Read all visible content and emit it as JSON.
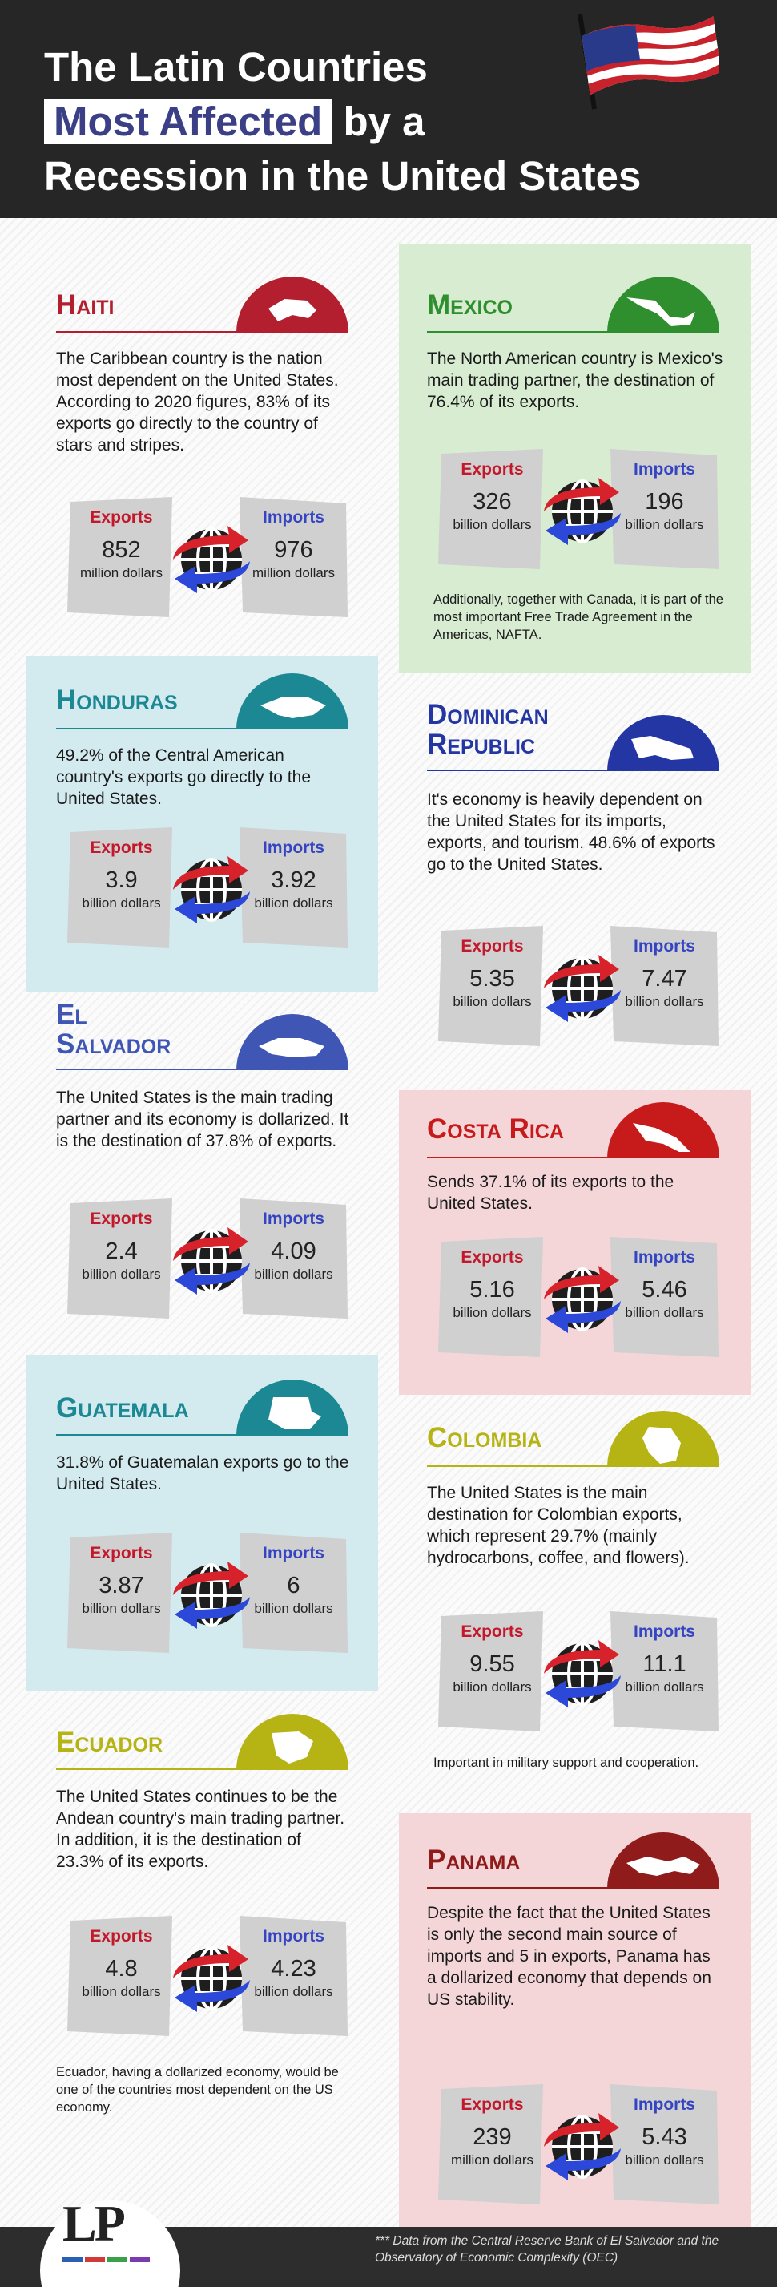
{
  "title": {
    "line1": "The Latin Countries",
    "highlight": "Most Affected",
    "line2_rest": "by a",
    "line3": "Recession in the United States"
  },
  "labels": {
    "exports": "Exports",
    "imports": "Imports"
  },
  "icons": {
    "flag": "us-flag-icon",
    "trade": "globe-trade-arrows-icon"
  },
  "colors": {
    "dark": "#262626",
    "haiti": "#b41f2f",
    "mexico": "#2f8f2f",
    "honduras": "#1b8894",
    "dominican": "#2336a3",
    "salvador": "#3f56b5",
    "costarica": "#c71a1a",
    "guatemala": "#1b8894",
    "colombia": "#b6b315",
    "ecuador": "#b6b315",
    "panama": "#8f1b1b",
    "export_label": "#c3182b",
    "import_label": "#3545c2"
  },
  "countries": {
    "haiti": {
      "name": "Haiti",
      "desc": "The Caribbean country is the nation most dependent on the United States. According to 2020 figures, 83% of its exports go directly to the country of stars and stripes.",
      "exports": "852",
      "exports_unit": "million dollars",
      "imports": "976",
      "imports_unit": "million dollars"
    },
    "mexico": {
      "name": "Mexico",
      "desc": "The North American country is Mexico's main trading partner, the destination of 76.4% of its exports.",
      "exports": "326",
      "exports_unit": "billion dollars",
      "imports": "196",
      "imports_unit": "billion dollars",
      "note": "Additionally, together with Canada, it is part of the most important Free Trade Agreement in the Americas, NAFTA."
    },
    "honduras": {
      "name": "Honduras",
      "desc": "49.2% of the Central American country's exports go directly to the United States.",
      "exports": "3.9",
      "exports_unit": "billion dollars",
      "imports": "3.92",
      "imports_unit": "billion dollars"
    },
    "dominican": {
      "name": "Dominican Republic",
      "name1": "Dominican",
      "name2": "Republic",
      "desc": "It's economy is heavily dependent on the United States for its imports, exports, and tourism. 48.6% of exports go to the United States.",
      "exports": "5.35",
      "exports_unit": "billion dollars",
      "imports": "7.47",
      "imports_unit": "billion dollars"
    },
    "salvador": {
      "name": "El Salvador",
      "name1": "El",
      "name2": "Salvador",
      "desc": "The United States is the main trading partner and its economy is dollarized. It is the destination of 37.8% of exports.",
      "exports": "2.4",
      "exports_unit": "billion dollars",
      "imports": "4.09",
      "imports_unit": "billion dollars"
    },
    "costarica": {
      "name": "Costa Rica",
      "desc": "Sends 37.1% of its exports to the United States.",
      "exports": "5.16",
      "exports_unit": "billion dollars",
      "imports": "5.46",
      "imports_unit": "billion dollars"
    },
    "guatemala": {
      "name": "Guatemala",
      "desc": "31.8% of Guatemalan exports go to the United States.",
      "exports": "3.87",
      "exports_unit": "billion dollars",
      "imports": "6",
      "imports_unit": "billion dollars"
    },
    "colombia": {
      "name": "Colombia",
      "desc": "The United States is the main destination for Colombian exports, which represent 29.7% (mainly hydrocarbons, coffee, and flowers).",
      "exports": "9.55",
      "exports_unit": "billion dollars",
      "imports": "11.1",
      "imports_unit": "billion dollars",
      "note": "Important in military support and cooperation."
    },
    "ecuador": {
      "name": "Ecuador",
      "desc": "The United States continues to be the Andean country's main trading partner. In addition, it is the destination of 23.3% of its exports.",
      "exports": "4.8",
      "exports_unit": "billion dollars",
      "imports": "4.23",
      "imports_unit": "billion dollars",
      "note": "Ecuador, having a dollarized economy, would be one of the countries most dependent on the US economy."
    },
    "panama": {
      "name": "Panama",
      "desc": "Despite the fact that the United States is only the second main source of imports and 5 in exports, Panama has a dollarized economy that depends on US stability.",
      "exports": "239",
      "exports_unit": "million dollars",
      "imports": "5.43",
      "imports_unit": "billion dollars"
    }
  },
  "footer": {
    "logo": "LP",
    "source": "*** Data from the Central Reserve Bank of El Salvador and the Observatory of Economic Complexity (OEC)"
  }
}
